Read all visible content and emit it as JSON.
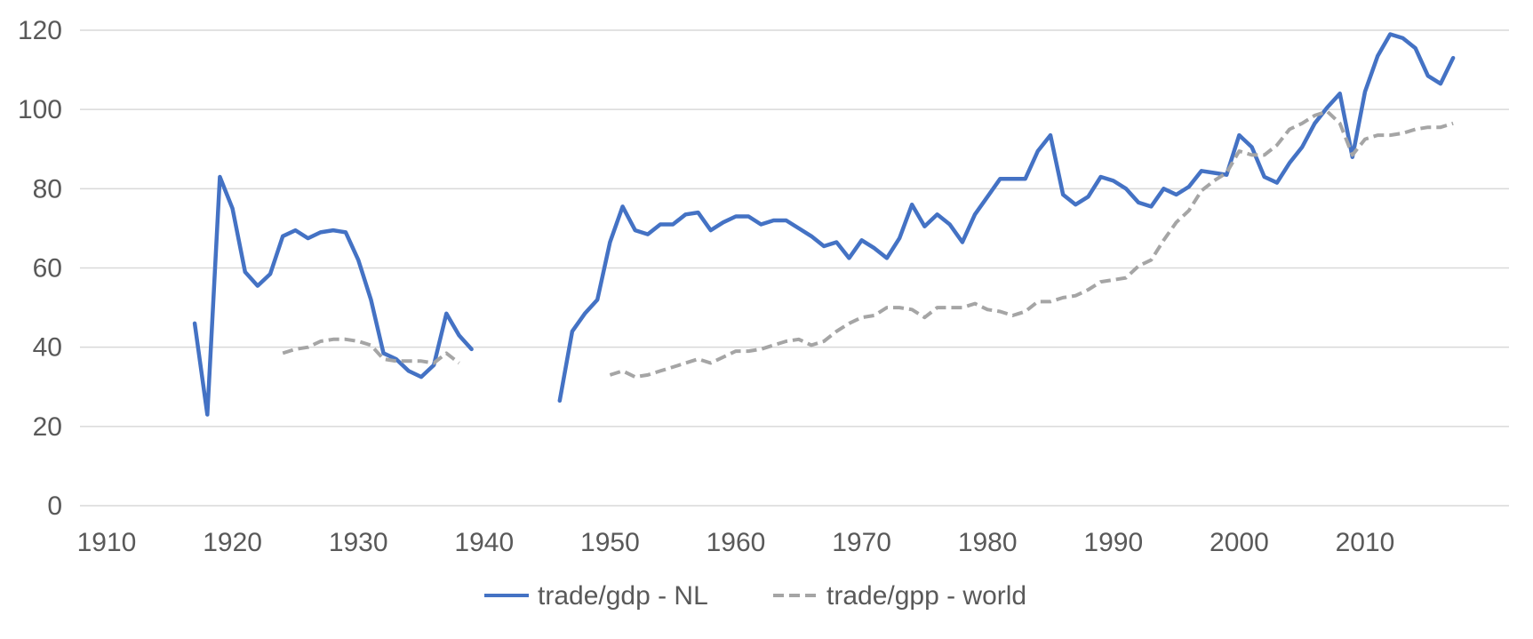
{
  "chart_data": {
    "type": "line",
    "title": "",
    "xlabel": "",
    "ylabel": "",
    "xlim": [
      1910,
      2020
    ],
    "ylim": [
      0,
      120
    ],
    "x_ticks": [
      1910,
      1920,
      1930,
      1940,
      1950,
      1960,
      1970,
      1980,
      1990,
      2000,
      2010
    ],
    "y_ticks": [
      0,
      20,
      40,
      60,
      80,
      100,
      120
    ],
    "grid": "horizontal",
    "legend_position": "bottom",
    "colors": {
      "nl": "#4472C4",
      "world": "#A5A5A5",
      "grid": "#D9D9D9",
      "text": "#595959"
    },
    "series": [
      {
        "name": "trade/gdp - NL",
        "style": "solid",
        "color": "#4472C4",
        "segments": [
          [
            [
              1917,
              46
            ],
            [
              1918,
              23
            ],
            [
              1919,
              83
            ],
            [
              1920,
              75
            ],
            [
              1921,
              59
            ],
            [
              1922,
              55.5
            ],
            [
              1923,
              58.5
            ],
            [
              1924,
              68
            ],
            [
              1925,
              69.5
            ],
            [
              1926,
              67.5
            ],
            [
              1927,
              69
            ],
            [
              1928,
              69.5
            ],
            [
              1929,
              69
            ],
            [
              1930,
              62
            ],
            [
              1931,
              52
            ],
            [
              1932,
              38.5
            ],
            [
              1933,
              37
            ],
            [
              1934,
              34
            ],
            [
              1935,
              32.5
            ],
            [
              1936,
              35.5
            ],
            [
              1937,
              48.5
            ],
            [
              1938,
              43
            ],
            [
              1939,
              39.5
            ]
          ],
          [
            [
              1946,
              26.5
            ],
            [
              1947,
              44
            ],
            [
              1948,
              48.5
            ],
            [
              1949,
              52
            ],
            [
              1950,
              66.5
            ],
            [
              1951,
              75.5
            ],
            [
              1952,
              69.5
            ],
            [
              1953,
              68.5
            ],
            [
              1954,
              71
            ],
            [
              1955,
              71
            ],
            [
              1956,
              73.5
            ],
            [
              1957,
              74
            ],
            [
              1958,
              69.5
            ],
            [
              1959,
              71.5
            ],
            [
              1960,
              73
            ],
            [
              1961,
              73
            ],
            [
              1962,
              71
            ],
            [
              1963,
              72
            ],
            [
              1964,
              72
            ],
            [
              1965,
              70
            ],
            [
              1966,
              68
            ],
            [
              1967,
              65.5
            ],
            [
              1968,
              66.5
            ],
            [
              1969,
              62.5
            ],
            [
              1970,
              67
            ],
            [
              1971,
              65
            ],
            [
              1972,
              62.5
            ],
            [
              1973,
              67.5
            ],
            [
              1974,
              76
            ],
            [
              1975,
              70.5
            ],
            [
              1976,
              73.5
            ],
            [
              1977,
              71
            ],
            [
              1978,
              66.5
            ],
            [
              1979,
              73.5
            ],
            [
              1980,
              78
            ],
            [
              1981,
              82.5
            ],
            [
              1982,
              82.5
            ],
            [
              1983,
              82.5
            ],
            [
              1984,
              89.5
            ],
            [
              1985,
              93.5
            ],
            [
              1986,
              78.5
            ],
            [
              1987,
              76
            ],
            [
              1988,
              78
            ],
            [
              1989,
              83
            ],
            [
              1990,
              82
            ],
            [
              1991,
              80
            ],
            [
              1992,
              76.5
            ],
            [
              1993,
              75.5
            ],
            [
              1994,
              80
            ],
            [
              1995,
              78.5
            ],
            [
              1996,
              80.5
            ],
            [
              1997,
              84.5
            ],
            [
              1998,
              84
            ],
            [
              1999,
              83.5
            ],
            [
              2000,
              93.5
            ],
            [
              2001,
              90.5
            ],
            [
              2002,
              83
            ],
            [
              2003,
              81.5
            ],
            [
              2004,
              86.5
            ],
            [
              2005,
              90.5
            ],
            [
              2006,
              96.5
            ],
            [
              2007,
              100.5
            ],
            [
              2008,
              104
            ],
            [
              2009,
              88
            ],
            [
              2010,
              104.5
            ],
            [
              2011,
              113.5
            ],
            [
              2012,
              119
            ],
            [
              2013,
              118
            ],
            [
              2014,
              115.5
            ],
            [
              2015,
              108.5
            ],
            [
              2016,
              106.5
            ],
            [
              2017,
              113
            ]
          ]
        ]
      },
      {
        "name": "trade/gpp - world",
        "style": "dashed",
        "color": "#A5A5A5",
        "segments": [
          [
            [
              1924,
              38.5
            ],
            [
              1925,
              39.5
            ],
            [
              1926,
              40
            ],
            [
              1927,
              41.5
            ],
            [
              1928,
              42
            ],
            [
              1929,
              42
            ],
            [
              1930,
              41.5
            ],
            [
              1931,
              40.5
            ],
            [
              1932,
              37
            ],
            [
              1933,
              36.5
            ],
            [
              1934,
              36.5
            ],
            [
              1935,
              36.5
            ],
            [
              1936,
              36
            ],
            [
              1937,
              38.5
            ],
            [
              1938,
              36
            ]
          ],
          [
            [
              1950,
              33
            ],
            [
              1951,
              34
            ],
            [
              1952,
              32.5
            ],
            [
              1953,
              33
            ],
            [
              1954,
              34
            ],
            [
              1955,
              35
            ],
            [
              1956,
              36
            ],
            [
              1957,
              37
            ],
            [
              1958,
              36
            ],
            [
              1959,
              37.5
            ],
            [
              1960,
              39
            ],
            [
              1961,
              39
            ],
            [
              1962,
              39.5
            ],
            [
              1963,
              40.5
            ],
            [
              1964,
              41.5
            ],
            [
              1965,
              42
            ],
            [
              1966,
              40.5
            ],
            [
              1967,
              41.5
            ],
            [
              1968,
              44
            ],
            [
              1969,
              46
            ],
            [
              1970,
              47.5
            ],
            [
              1971,
              48
            ],
            [
              1972,
              50
            ],
            [
              1973,
              50
            ],
            [
              1974,
              49.5
            ],
            [
              1975,
              47.5
            ],
            [
              1976,
              50
            ],
            [
              1977,
              50
            ],
            [
              1978,
              50
            ],
            [
              1979,
              51
            ],
            [
              1980,
              49.5
            ],
            [
              1981,
              49
            ],
            [
              1982,
              48
            ],
            [
              1983,
              49
            ],
            [
              1984,
              51.5
            ],
            [
              1985,
              51.5
            ],
            [
              1986,
              52.5
            ],
            [
              1987,
              53
            ],
            [
              1988,
              54.5
            ],
            [
              1989,
              56.5
            ],
            [
              1990,
              57
            ],
            [
              1991,
              57.5
            ],
            [
              1992,
              60.5
            ],
            [
              1993,
              62
            ],
            [
              1994,
              67
            ],
            [
              1995,
              71.5
            ],
            [
              1996,
              74.5
            ],
            [
              1997,
              79.5
            ],
            [
              1998,
              82
            ],
            [
              1999,
              84
            ],
            [
              2000,
              89.5
            ],
            [
              2001,
              88.5
            ],
            [
              2002,
              88.5
            ],
            [
              2003,
              91
            ],
            [
              2004,
              95
            ],
            [
              2005,
              96.5
            ],
            [
              2006,
              98.5
            ],
            [
              2007,
              99.5
            ],
            [
              2008,
              96.5
            ],
            [
              2009,
              88.5
            ],
            [
              2010,
              92.5
            ],
            [
              2011,
              93.5
            ],
            [
              2012,
              93.5
            ],
            [
              2013,
              94
            ],
            [
              2014,
              95
            ],
            [
              2015,
              95.5
            ],
            [
              2016,
              95.5
            ],
            [
              2017,
              96.5
            ]
          ]
        ]
      }
    ]
  }
}
